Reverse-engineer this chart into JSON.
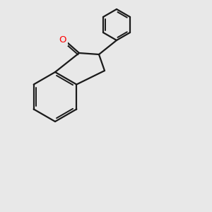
{
  "bg_color": "#e8e8e8",
  "bond_color": "#1a1a1a",
  "N_color": "#1414ff",
  "O_color": "#ff0000",
  "lw": 1.6,
  "lw2": 1.4,
  "figsize": [
    3.0,
    3.0
  ],
  "dpi": 100,
  "atoms": {
    "N_color": "#1414ff",
    "O_color": "#ff0000",
    "NH_color": "#1414ff",
    "C_color": "#1a1a1a"
  }
}
